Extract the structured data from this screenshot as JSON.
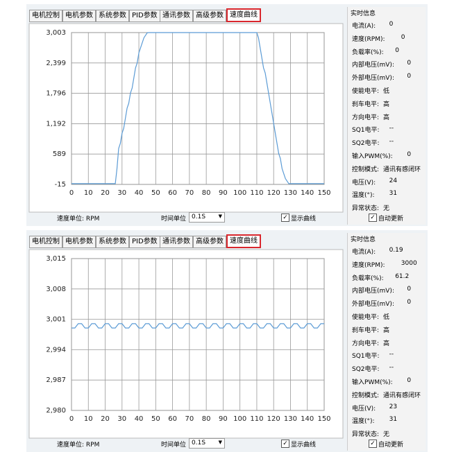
{
  "panels": [
    {
      "tabs": [
        "电机控制",
        "电机参数",
        "系统参数",
        "PID参数",
        "通讯参数",
        "高级参数",
        "速度曲线"
      ],
      "chart_data": {
        "type": "line",
        "color": "#5b9bd5",
        "grid": true,
        "x": [
          0,
          25,
          26,
          27,
          28,
          29,
          30,
          31,
          32,
          33,
          34,
          35,
          36,
          37,
          38,
          39,
          40,
          41,
          42,
          43,
          44,
          45,
          46,
          110,
          111,
          112,
          113,
          114,
          115,
          116,
          117,
          118,
          119,
          120,
          121,
          122,
          123,
          124,
          125,
          126,
          127,
          128,
          129,
          130,
          150
        ],
        "values": [
          0,
          0,
          0,
          300,
          700,
          800,
          1000,
          1100,
          1300,
          1500,
          1600,
          1800,
          1900,
          2100,
          2300,
          2400,
          2600,
          2700,
          2800,
          2900,
          2950,
          3000,
          3003,
          3003,
          2900,
          2700,
          2500,
          2300,
          2200,
          2000,
          1800,
          1600,
          1400,
          1200,
          1000,
          800,
          600,
          500,
          300,
          200,
          100,
          50,
          0,
          0,
          0
        ],
        "xlim": [
          0,
          150
        ],
        "xticks": [
          0,
          10,
          20,
          30,
          40,
          50,
          60,
          70,
          80,
          90,
          100,
          110,
          120,
          130,
          140,
          150
        ],
        "ylim": [
          -15,
          3003
        ],
        "yticks": [
          -15,
          589,
          {
            "value": 1192,
            "label": "1,192"
          },
          {
            "value": 1796,
            "label": "1,796"
          },
          {
            "value": 2399,
            "label": "2,399"
          },
          {
            "value": 3003,
            "label": "3,003"
          }
        ]
      },
      "speed_unit": "速度单位: RPM",
      "time_unit_label": "时间单位",
      "time_unit": "0.1S",
      "show_curve": "显示曲线",
      "info_title": "实时信息",
      "info": [
        [
          "电流(A):",
          "0"
        ],
        [
          "速度(RPM):",
          "0"
        ],
        [
          "负载率(%):",
          "0"
        ],
        [
          "内部电压(mV):",
          "0"
        ],
        [
          "外部电压(mV):",
          "0"
        ],
        [
          "使能电平:",
          "低"
        ],
        [
          "刹车电平:",
          "高"
        ],
        [
          "方向电平:",
          "高"
        ],
        [
          "SQ1电平:",
          "--"
        ],
        [
          "SQ2电平:",
          "--"
        ],
        [
          "输入PWM(%):",
          "0"
        ],
        [
          "控制模式:",
          "通讯有感闭环"
        ],
        [
          "电压(V):",
          "24"
        ],
        [
          "温度(°):",
          "31"
        ],
        [
          "异常状态:",
          "无"
        ]
      ],
      "auto_update": "自动更新"
    },
    {
      "tabs": [
        "电机控制",
        "电机参数",
        "系统参数",
        "PID参数",
        "通讯参数",
        "高级参数",
        "速度曲线"
      ],
      "chart_data": {
        "type": "line",
        "color": "#5b9bd5",
        "grid": true,
        "x": [
          0,
          2,
          4,
          6,
          8,
          10,
          12,
          14,
          16,
          18,
          20,
          22,
          24,
          26,
          28,
          30,
          32,
          34,
          36,
          38,
          40,
          42,
          44,
          46,
          48,
          50,
          52,
          54,
          56,
          58,
          60,
          62,
          64,
          66,
          68,
          70,
          72,
          74,
          76,
          78,
          80,
          82,
          84,
          86,
          88,
          90,
          92,
          94,
          96,
          98,
          100,
          102,
          104,
          106,
          108,
          110,
          112,
          114,
          116,
          118,
          120,
          122,
          124,
          126,
          128,
          130,
          132,
          134,
          136,
          138,
          140,
          142,
          144,
          146,
          148,
          150
        ],
        "values": [
          2999,
          2999,
          3000,
          3000,
          2999,
          2999,
          3000,
          3000,
          2999,
          2999,
          3000,
          3000,
          2999,
          2999,
          3000,
          3000,
          2999,
          2999,
          3000,
          3000,
          2999,
          2999,
          3000,
          3000,
          2999,
          2999,
          3000,
          3000,
          2999,
          2999,
          3000,
          3000,
          2999,
          2999,
          3000,
          3000,
          2999,
          2999,
          3000,
          3000,
          2999,
          2999,
          3000,
          3000,
          2999,
          2999,
          3000,
          3000,
          2999,
          2999,
          3000,
          3000,
          2999,
          2999,
          3000,
          3000,
          2999,
          2999,
          3000,
          3000,
          2999,
          2999,
          3000,
          3000,
          2999,
          2999,
          3000,
          3000,
          2999,
          2999,
          3000,
          3000,
          2999,
          2999,
          3000,
          3000
        ],
        "xlim": [
          0,
          150
        ],
        "xticks": [
          0,
          10,
          20,
          30,
          40,
          50,
          60,
          70,
          80,
          90,
          100,
          110,
          120,
          130,
          140,
          150
        ],
        "ylim": [
          2980,
          3015
        ],
        "yticks": [
          {
            "value": 2980,
            "label": "2,980"
          },
          {
            "value": 2987,
            "label": "2,987"
          },
          {
            "value": 2994,
            "label": "2,994"
          },
          {
            "value": 3001,
            "label": "3,001"
          },
          {
            "value": 3008,
            "label": "3,008"
          },
          {
            "value": 3015,
            "label": "3,015"
          }
        ]
      },
      "speed_unit": "速度单位: RPM",
      "time_unit_label": "时间单位",
      "time_unit": "0.1S",
      "show_curve": "显示曲线",
      "info_title": "实时信息",
      "info": [
        [
          "电流(A):",
          "0.19"
        ],
        [
          "速度(RPM):",
          "3000"
        ],
        [
          "负载率(%):",
          "61.2"
        ],
        [
          "内部电压(mV):",
          "0"
        ],
        [
          "外部电压(mV):",
          "0"
        ],
        [
          "使能电平:",
          "低"
        ],
        [
          "刹车电平:",
          "高"
        ],
        [
          "方向电平:",
          "高"
        ],
        [
          "SQ1电平:",
          "--"
        ],
        [
          "SQ2电平:",
          "--"
        ],
        [
          "输入PWM(%):",
          "0"
        ],
        [
          "控制模式:",
          "通讯有感闭环"
        ],
        [
          "电压(V):",
          "23"
        ],
        [
          "温度(°):",
          "31"
        ],
        [
          "异常状态:",
          "无"
        ]
      ],
      "auto_update": "自动更新"
    }
  ]
}
